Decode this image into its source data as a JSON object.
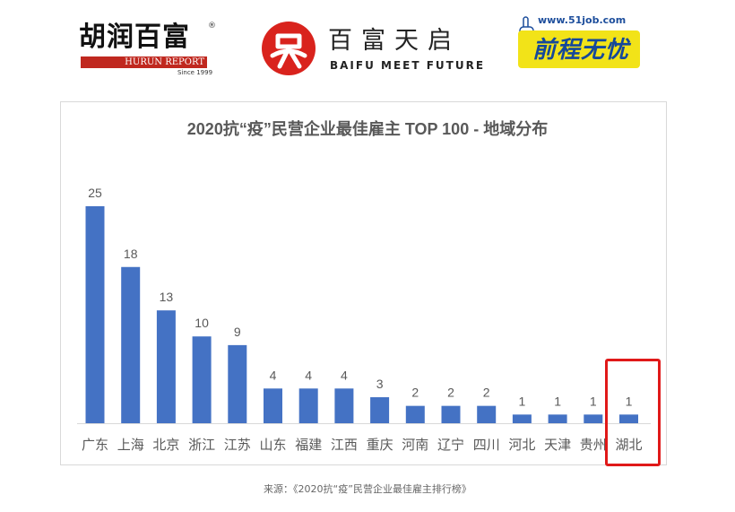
{
  "logos": {
    "hurun": {
      "name_cn": "胡润百富",
      "name_en": "HURUN REPORT",
      "since": "Since 1999",
      "registered": "®"
    },
    "baifu": {
      "name_cn": "百富天启",
      "name_en": "BAIFU MEET FUTURE"
    },
    "job51": {
      "url": "www.51job.com",
      "name_cn": "前程无忧"
    },
    "colors": {
      "hurun_red": "#c0281f",
      "baifu_red": "#d9231d",
      "job51_yellow": "#f2e318",
      "job51_blue": "#15489a"
    }
  },
  "chart_data": {
    "type": "bar",
    "title": "2020抗“疫”民营企业最佳雇主 TOP 100 - 地域分布",
    "categories": [
      "广东",
      "上海",
      "北京",
      "浙江",
      "江苏",
      "山东",
      "福建",
      "江西",
      "重庆",
      "河南",
      "辽宁",
      "四川",
      "河北",
      "天津",
      "贵州",
      "湖北"
    ],
    "values": [
      25,
      18,
      13,
      10,
      9,
      4,
      4,
      4,
      3,
      2,
      2,
      2,
      1,
      1,
      1,
      1
    ],
    "xlabel": "",
    "ylabel": "",
    "ylim": [
      0,
      25
    ],
    "grid": false,
    "legend": "none",
    "bar_color": "#4472c4",
    "highlighted_category": "湖北",
    "highlight_color": "#e01919"
  },
  "source_note": "来源：《2020抗“疫”民营企业最佳雇主排行榜》"
}
